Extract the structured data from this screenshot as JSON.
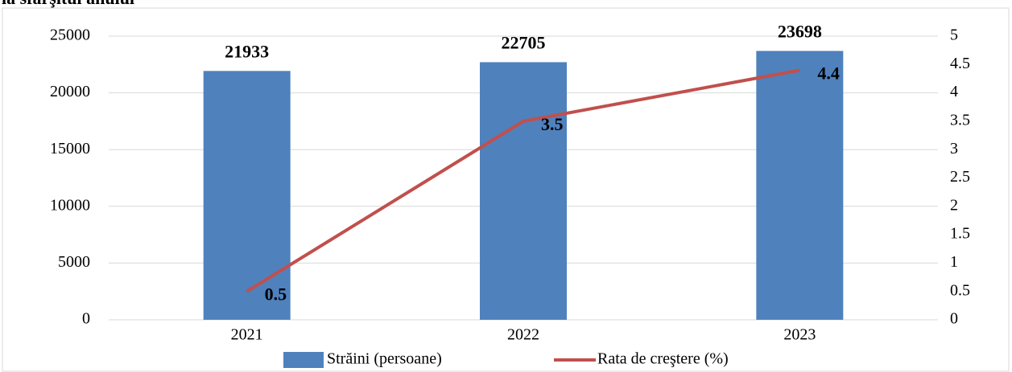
{
  "chart_data": {
    "type": "bar",
    "title": "la sfârşitul anului",
    "categories": [
      "2021",
      "2022",
      "2023"
    ],
    "series": [
      {
        "name": "Străini (persoane)",
        "type": "bar",
        "color": "#4f81bd",
        "values": [
          21933,
          22705,
          23698
        ]
      },
      {
        "name": "Rata de creştere (%)",
        "type": "line",
        "axis": "y2",
        "color": "#c0504d",
        "values": [
          0.5,
          3.5,
          4.4
        ]
      }
    ],
    "ylim": [
      0,
      25000
    ],
    "yticks": [
      0,
      5000,
      10000,
      15000,
      20000,
      25000
    ],
    "y2lim": [
      0,
      5
    ],
    "y2ticks": [
      0,
      0.5,
      1,
      1.5,
      2,
      2.5,
      3,
      3.5,
      4,
      4.5,
      5
    ],
    "grid": true,
    "legend": "bottom"
  }
}
